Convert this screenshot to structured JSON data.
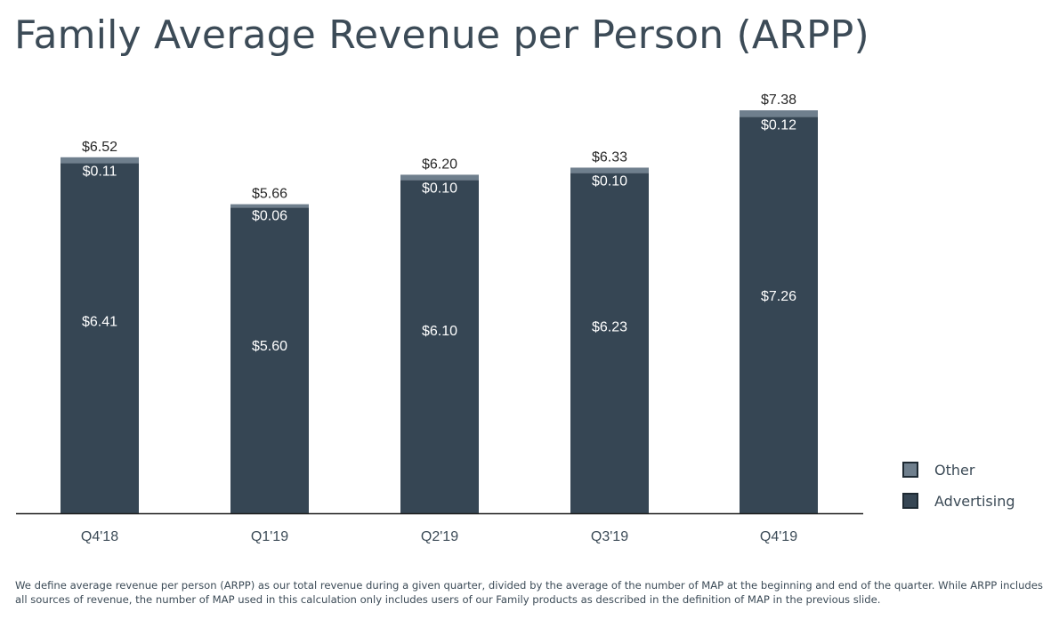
{
  "title": "Family Average Revenue per Person (ARPP)",
  "chart_data": {
    "type": "bar",
    "stacked": true,
    "title": "Family Average Revenue per Person (ARPP)",
    "categories": [
      "Q4'18",
      "Q1'19",
      "Q2'19",
      "Q3'19",
      "Q4'19"
    ],
    "series": [
      {
        "name": "Advertising",
        "values": [
          6.41,
          5.6,
          6.1,
          6.23,
          7.26
        ],
        "labels": [
          "$6.41",
          "$5.60",
          "$6.10",
          "$6.23",
          "$7.26"
        ],
        "color": "#364654"
      },
      {
        "name": "Other",
        "values": [
          0.11,
          0.06,
          0.1,
          0.1,
          0.12
        ],
        "labels": [
          "$0.11",
          "$0.06",
          "$0.10",
          "$0.10",
          "$0.12"
        ],
        "color": "#6f7f8d"
      }
    ],
    "totals": [
      6.52,
      5.66,
      6.2,
      6.33,
      7.38
    ],
    "total_labels": [
      "$6.52",
      "$5.66",
      "$6.20",
      "$6.33",
      "$7.38"
    ],
    "xlabel": "",
    "ylabel": "",
    "ylim": [
      0,
      7.38
    ],
    "grid": false,
    "legend_position": "bottom-right"
  },
  "legend": [
    {
      "label": "Other",
      "color": "#6f7f8d"
    },
    {
      "label": "Advertising",
      "color": "#364654"
    }
  ],
  "footnote": "We define average revenue per person (ARPP) as our total revenue during a given quarter, divided by the average of the number of MAP at the beginning and end of the quarter. While ARPP includes all sources of revenue, the number of MAP used in this calculation only includes users of our Family products as described in the definition of MAP in the previous slide."
}
